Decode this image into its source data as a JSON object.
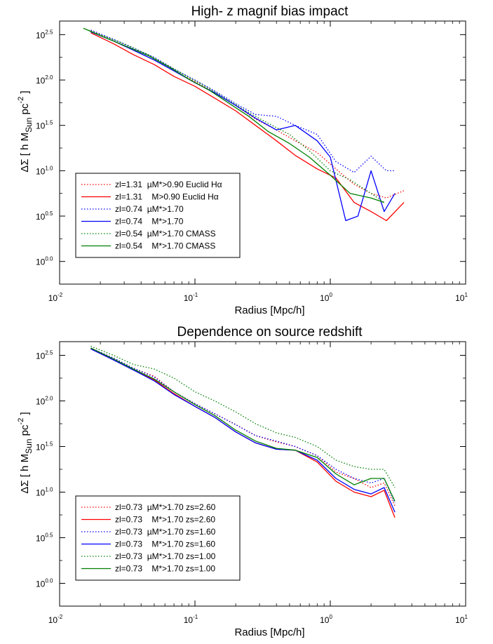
{
  "chart_data": [
    {
      "type": "line",
      "title": "High- z magnif bias impact",
      "xlabel": "Radius [Mpc/h]",
      "ylabel": {
        "prefix": "ΔΣ",
        "text": "[ h M",
        "sub": "Sun",
        "mid": " pc",
        "sup": "-2",
        "end": " ]"
      },
      "xscale": "log",
      "yscale": "log",
      "xlim_log10": [
        -2,
        1
      ],
      "ylim_log10": [
        -0.25,
        2.65
      ],
      "xticks": [
        {
          "base": "10",
          "exp": "-2",
          "log": -2
        },
        {
          "base": "10",
          "exp": "-1",
          "log": -1
        },
        {
          "base": "10",
          "exp": "0",
          "log": 0
        },
        {
          "base": "10",
          "exp": "1",
          "log": 1
        }
      ],
      "yticks": [
        {
          "base": "10",
          "exp": "0.0",
          "log": 0.0
        },
        {
          "base": "10",
          "exp": "0.5",
          "log": 0.5
        },
        {
          "base": "10",
          "exp": "1.0",
          "log": 1.0
        },
        {
          "base": "10",
          "exp": "1.5",
          "log": 1.5
        },
        {
          "base": "10",
          "exp": "2.0",
          "log": 2.0
        },
        {
          "base": "10",
          "exp": "2.5",
          "log": 2.5
        }
      ],
      "grid": false,
      "legend_position": "bottom-left",
      "series": [
        {
          "name": "zl=1.31  µM*>0.90 Euclid Hα",
          "color": "#ff0000",
          "dash": "dotted",
          "x": [
            0.017,
            0.025,
            0.035,
            0.05,
            0.07,
            0.1,
            0.14,
            0.2,
            0.28,
            0.4,
            0.55,
            0.8,
            1.1,
            1.5,
            2.0,
            2.6,
            3.5
          ],
          "y_log10": [
            2.54,
            2.43,
            2.33,
            2.22,
            2.1,
            1.98,
            1.86,
            1.72,
            1.57,
            1.45,
            1.33,
            1.2,
            1.02,
            0.85,
            0.75,
            0.7,
            0.78
          ]
        },
        {
          "name": "zl=1.31    M>0.90 Euclid Hα",
          "color": "#ff0000",
          "dash": "solid",
          "x": [
            0.017,
            0.025,
            0.035,
            0.05,
            0.07,
            0.1,
            0.14,
            0.2,
            0.28,
            0.4,
            0.55,
            0.8,
            1.1,
            1.5,
            2.0,
            2.6,
            3.5
          ],
          "y_log10": [
            2.52,
            2.4,
            2.28,
            2.17,
            2.04,
            1.93,
            1.8,
            1.66,
            1.5,
            1.33,
            1.17,
            1.02,
            0.92,
            0.65,
            0.55,
            0.45,
            0.65
          ]
        },
        {
          "name": "zl=0.74  µM*>1.70",
          "color": "#0000ff",
          "dash": "dotted",
          "x": [
            0.017,
            0.025,
            0.035,
            0.05,
            0.07,
            0.1,
            0.14,
            0.2,
            0.28,
            0.4,
            0.55,
            0.8,
            1.1,
            1.5,
            2.0,
            2.6,
            3.0
          ],
          "y_log10": [
            2.55,
            2.45,
            2.35,
            2.25,
            2.12,
            2.0,
            1.88,
            1.74,
            1.62,
            1.6,
            1.5,
            1.4,
            1.1,
            0.98,
            1.16,
            1.0,
            1.0
          ]
        },
        {
          "name": "zl=0.74    M*>1.70",
          "color": "#0000ff",
          "dash": "solid",
          "x": [
            0.017,
            0.025,
            0.035,
            0.05,
            0.07,
            0.1,
            0.14,
            0.2,
            0.28,
            0.4,
            0.55,
            0.8,
            1.0,
            1.3,
            1.6,
            2.0,
            2.5,
            3.0
          ],
          "y_log10": [
            2.53,
            2.43,
            2.33,
            2.22,
            2.1,
            1.97,
            1.86,
            1.72,
            1.58,
            1.45,
            1.5,
            1.33,
            1.15,
            0.45,
            0.5,
            1.0,
            0.55,
            0.75
          ]
        },
        {
          "name": "zl=0.54  µM*>1.70 CMASS",
          "color": "#008000",
          "dash": "dotted",
          "x": [
            0.015,
            0.02,
            0.03,
            0.045,
            0.065,
            0.09,
            0.13,
            0.18,
            0.25,
            0.35,
            0.5,
            0.7,
            1.0,
            1.4,
            2.0,
            2.5
          ],
          "y_log10": [
            2.57,
            2.5,
            2.4,
            2.28,
            2.15,
            2.03,
            1.9,
            1.77,
            1.64,
            1.52,
            1.4,
            1.22,
            1.0,
            0.9,
            0.75,
            0.65
          ]
        },
        {
          "name": "zl=0.54    M*>1.70 CMASS",
          "color": "#008000",
          "dash": "solid",
          "x": [
            0.015,
            0.02,
            0.03,
            0.045,
            0.065,
            0.09,
            0.13,
            0.18,
            0.25,
            0.35,
            0.5,
            0.7,
            1.0,
            1.4,
            2.0,
            2.5
          ],
          "y_log10": [
            2.57,
            2.49,
            2.38,
            2.27,
            2.14,
            2.01,
            1.88,
            1.74,
            1.6,
            1.43,
            1.3,
            1.15,
            0.95,
            0.75,
            0.7,
            0.65
          ]
        }
      ]
    },
    {
      "type": "line",
      "title": "Dependence on source redshift",
      "xlabel": "Radius [Mpc/h]",
      "ylabel": {
        "prefix": "ΔΣ",
        "text": "[ h M",
        "sub": "Sun",
        "mid": " pc",
        "sup": "-2",
        "end": " ]"
      },
      "xscale": "log",
      "yscale": "log",
      "xlim_log10": [
        -2,
        1
      ],
      "ylim_log10": [
        -0.25,
        2.65
      ],
      "xticks": [
        {
          "base": "10",
          "exp": "-2",
          "log": -2
        },
        {
          "base": "10",
          "exp": "-1",
          "log": -1
        },
        {
          "base": "10",
          "exp": "0",
          "log": 0
        },
        {
          "base": "10",
          "exp": "1",
          "log": 1
        }
      ],
      "yticks": [
        {
          "base": "10",
          "exp": "0.0",
          "log": 0.0
        },
        {
          "base": "10",
          "exp": "0.5",
          "log": 0.5
        },
        {
          "base": "10",
          "exp": "1.0",
          "log": 1.0
        },
        {
          "base": "10",
          "exp": "1.5",
          "log": 1.5
        },
        {
          "base": "10",
          "exp": "2.0",
          "log": 2.0
        },
        {
          "base": "10",
          "exp": "2.5",
          "log": 2.5
        }
      ],
      "grid": false,
      "legend_position": "bottom-left",
      "series": [
        {
          "name": "zl=0.73  µM*>1.70 zs=2.60",
          "color": "#ff0000",
          "dash": "dotted",
          "x": [
            0.017,
            0.025,
            0.035,
            0.05,
            0.07,
            0.1,
            0.14,
            0.2,
            0.28,
            0.4,
            0.55,
            0.8,
            1.1,
            1.5,
            2.0,
            2.5,
            3.0
          ],
          "y_log10": [
            2.58,
            2.47,
            2.36,
            2.27,
            2.1,
            1.97,
            1.86,
            1.74,
            1.62,
            1.55,
            1.5,
            1.4,
            1.22,
            1.15,
            1.05,
            1.1,
            0.85
          ]
        },
        {
          "name": "zl=0.73    M*>1.70 zs=2.60",
          "color": "#ff0000",
          "dash": "solid",
          "x": [
            0.017,
            0.025,
            0.035,
            0.05,
            0.07,
            0.1,
            0.14,
            0.2,
            0.28,
            0.4,
            0.55,
            0.8,
            1.1,
            1.5,
            2.0,
            2.5,
            3.0
          ],
          "y_log10": [
            2.57,
            2.45,
            2.34,
            2.23,
            2.08,
            1.94,
            1.82,
            1.66,
            1.54,
            1.47,
            1.46,
            1.33,
            1.12,
            1.0,
            0.95,
            1.02,
            0.72
          ]
        },
        {
          "name": "zl=0.73  µM*>1.70 zs=1.60",
          "color": "#0000ff",
          "dash": "dotted",
          "x": [
            0.017,
            0.025,
            0.035,
            0.05,
            0.07,
            0.1,
            0.14,
            0.2,
            0.28,
            0.4,
            0.55,
            0.8,
            1.1,
            1.5,
            2.0,
            2.5,
            3.0
          ],
          "y_log10": [
            2.58,
            2.47,
            2.36,
            2.26,
            2.1,
            1.97,
            1.86,
            1.74,
            1.62,
            1.56,
            1.5,
            1.4,
            1.25,
            1.15,
            1.1,
            1.15,
            0.88
          ]
        },
        {
          "name": "zl=0.73    M*>1.70 zs=1.60",
          "color": "#0000ff",
          "dash": "solid",
          "x": [
            0.017,
            0.025,
            0.035,
            0.05,
            0.07,
            0.1,
            0.14,
            0.2,
            0.28,
            0.4,
            0.55,
            0.8,
            1.1,
            1.5,
            2.0,
            2.5,
            3.0
          ],
          "y_log10": [
            2.57,
            2.45,
            2.34,
            2.22,
            2.07,
            1.94,
            1.82,
            1.66,
            1.54,
            1.47,
            1.46,
            1.35,
            1.15,
            1.03,
            0.98,
            1.05,
            0.78
          ]
        },
        {
          "name": "zl=0.73  µM*>1.70 zs=1.00",
          "color": "#008000",
          "dash": "dotted",
          "x": [
            0.017,
            0.025,
            0.035,
            0.05,
            0.07,
            0.1,
            0.14,
            0.2,
            0.28,
            0.4,
            0.55,
            0.8,
            1.1,
            1.5,
            2.0,
            2.5,
            3.0
          ],
          "y_log10": [
            2.6,
            2.5,
            2.4,
            2.35,
            2.25,
            2.1,
            2.0,
            1.88,
            1.75,
            1.65,
            1.6,
            1.5,
            1.35,
            1.28,
            1.25,
            1.25,
            1.05
          ]
        },
        {
          "name": "zl=0.73    M*>1.70 zs=1.00",
          "color": "#008000",
          "dash": "solid",
          "x": [
            0.017,
            0.025,
            0.035,
            0.05,
            0.07,
            0.1,
            0.14,
            0.2,
            0.28,
            0.4,
            0.55,
            0.8,
            1.1,
            1.5,
            2.0,
            2.5,
            3.0
          ],
          "y_log10": [
            2.58,
            2.46,
            2.35,
            2.24,
            2.1,
            1.96,
            1.84,
            1.68,
            1.56,
            1.48,
            1.46,
            1.38,
            1.2,
            1.08,
            1.15,
            1.15,
            0.9
          ]
        }
      ]
    }
  ]
}
